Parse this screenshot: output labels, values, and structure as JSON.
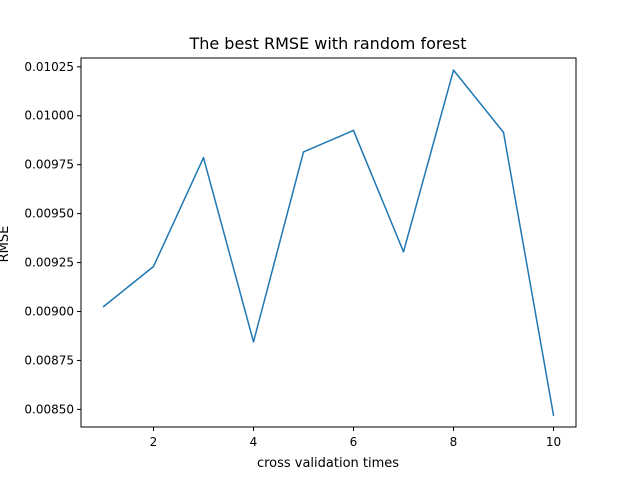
{
  "chart_data": {
    "type": "line",
    "title": "The best RMSE with random forest",
    "xlabel": "cross validation times",
    "ylabel": "RMSE",
    "x": [
      1,
      2,
      3,
      4,
      5,
      6,
      7,
      8,
      9,
      10
    ],
    "series": [
      {
        "name": "",
        "color": "#1f77b4",
        "values": [
          0.009025,
          0.00923,
          0.009786,
          0.008845,
          0.009815,
          0.009925,
          0.009305,
          0.010233,
          0.009915,
          0.00847
        ]
      }
    ],
    "xlim": [
      0.55,
      10.45
    ],
    "ylim": [
      0.00841,
      0.010295
    ],
    "xticks": [
      2,
      4,
      6,
      8,
      10
    ],
    "xtick_labels": [
      "2",
      "4",
      "6",
      "8",
      "10"
    ],
    "yticks": [
      0.0085,
      0.00875,
      0.009,
      0.00925,
      0.0095,
      0.00975,
      0.01,
      0.01025
    ],
    "ytick_labels": [
      "0.00850",
      "0.00875",
      "0.00900",
      "0.00925",
      "0.00950",
      "0.00975",
      "0.01000",
      "0.01025"
    ],
    "grid": false,
    "legend": "none"
  }
}
